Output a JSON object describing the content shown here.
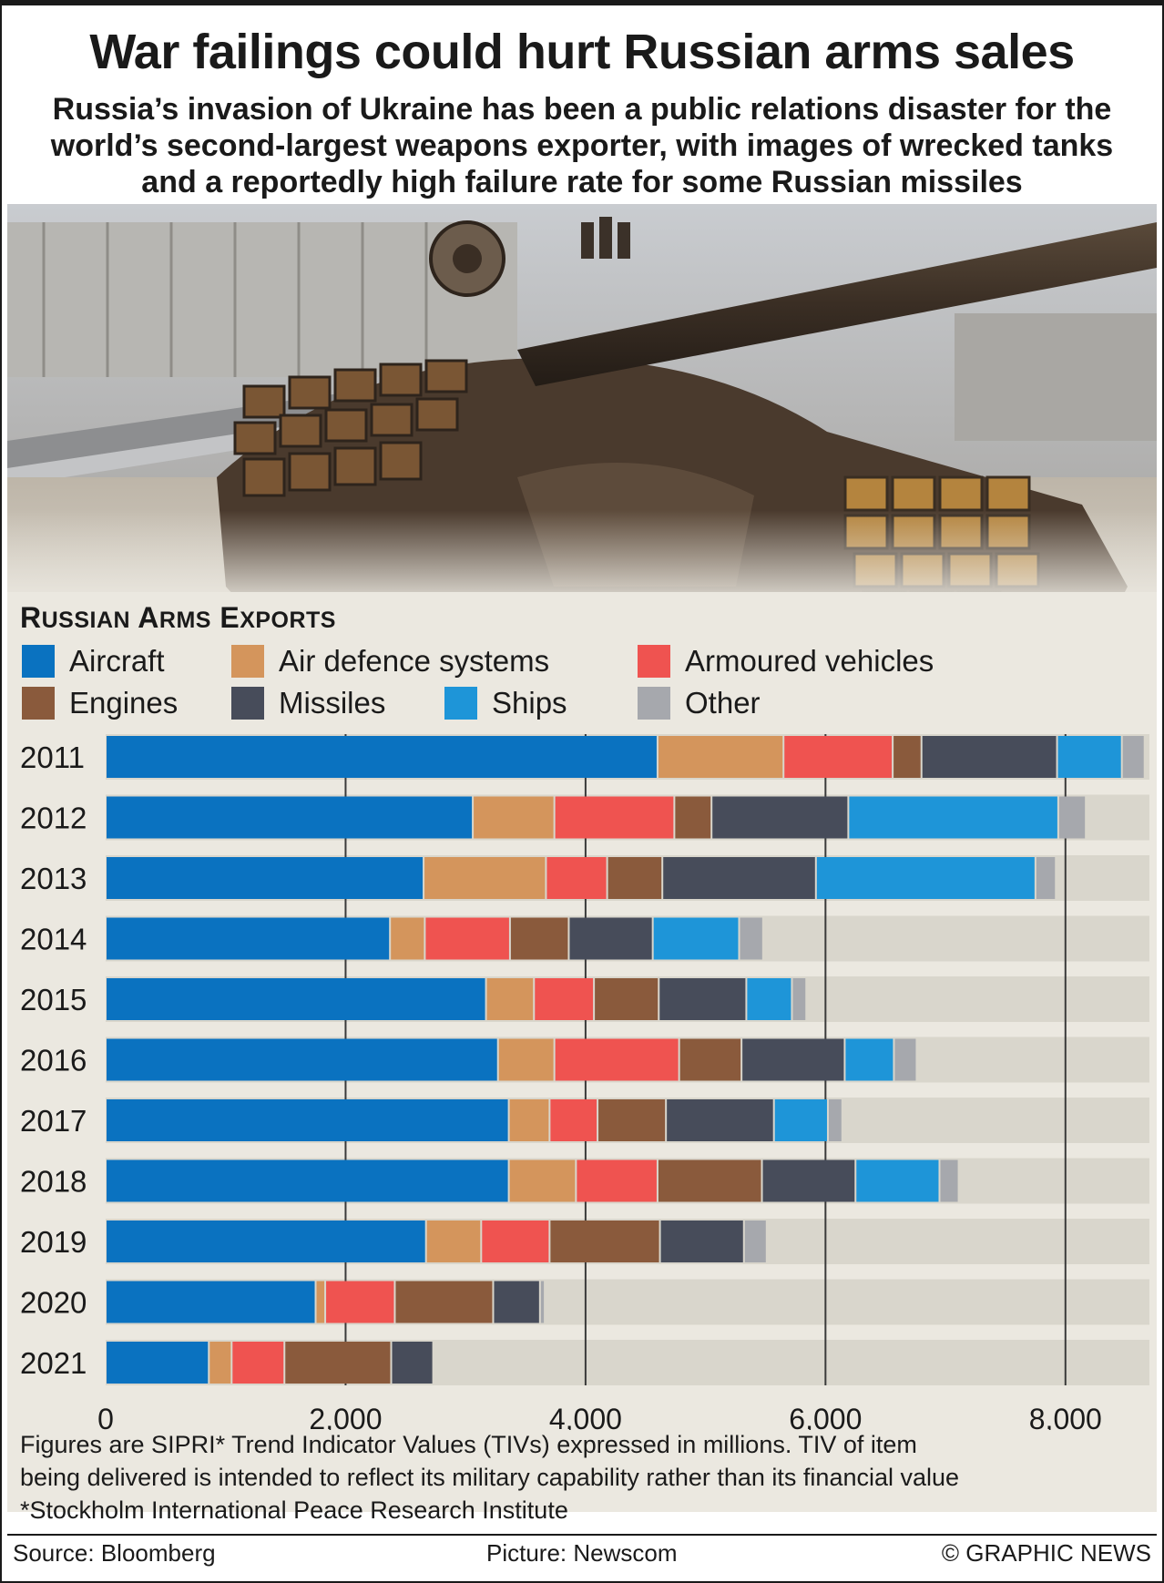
{
  "title": "War failings could hurt Russian arms sales",
  "subtitle": "Russia’s invasion of Ukraine has been a public relations disaster for the world’s second-largest weapons exporter, with images of wrecked tanks and a reportedly high failure rate for some Russian missiles",
  "section_title_first": "R",
  "section_title_rest1": "USSIAN",
  "section_title_first2": "A",
  "section_title_rest2": "RMS",
  "section_title_first3": "E",
  "section_title_rest3": "XPORTS",
  "footnote_lines": [
    "Figures are SIPRI* Trend Indicator Values (TIVs) expressed in millions. TIV of item",
    "being delivered is intended to reflect its military capability rather than its financial value",
    "*Stockholm International Peace Research Institute"
  ],
  "footer": {
    "source": "Source: Bloomberg",
    "picture": "Picture: Newscom",
    "credit": "© GRAPHIC NEWS"
  },
  "photo_icon": "wrecked-tank-photo",
  "chart_data": {
    "type": "bar",
    "orientation": "horizontal",
    "stacked": true,
    "xlim": [
      0,
      8700
    ],
    "xticks": [
      0,
      2000,
      4000,
      6000,
      8000
    ],
    "xtick_labels": [
      "0",
      "2,000",
      "4,000",
      "6,000",
      "8,000"
    ],
    "grid": true,
    "categories": [
      "2011",
      "2012",
      "2013",
      "2014",
      "2015",
      "2016",
      "2017",
      "2018",
      "2019",
      "2020",
      "2021"
    ],
    "series": [
      {
        "name": "Aircraft",
        "color": "#0a72c0",
        "values": [
          4600,
          3060,
          2650,
          2370,
          3170,
          3270,
          3360,
          3360,
          2670,
          1750,
          860
        ]
      },
      {
        "name": "Air defence systems",
        "color": "#d4955c",
        "values": [
          1050,
          680,
          1020,
          290,
          400,
          470,
          340,
          560,
          460,
          80,
          190
        ]
      },
      {
        "name": "Armoured vehicles",
        "color": "#ef5350",
        "values": [
          910,
          1000,
          510,
          710,
          500,
          1040,
          400,
          680,
          570,
          580,
          440
        ]
      },
      {
        "name": "Engines",
        "color": "#8a5a3c",
        "values": [
          240,
          310,
          460,
          490,
          540,
          520,
          570,
          870,
          920,
          820,
          890
        ]
      },
      {
        "name": "Missiles",
        "color": "#474c5a",
        "values": [
          1130,
          1140,
          1280,
          700,
          730,
          860,
          900,
          780,
          700,
          390,
          350
        ]
      },
      {
        "name": "Ships",
        "color": "#1e95d8",
        "values": [
          540,
          1750,
          1830,
          720,
          380,
          410,
          450,
          700,
          0,
          0,
          0
        ]
      },
      {
        "name": "Other",
        "color": "#a6a8ad",
        "values": [
          190,
          230,
          170,
          200,
          120,
          190,
          120,
          160,
          190,
          40,
          0
        ]
      }
    ],
    "legend_placement": "top",
    "bar_track_color": "#d9d6cc"
  }
}
